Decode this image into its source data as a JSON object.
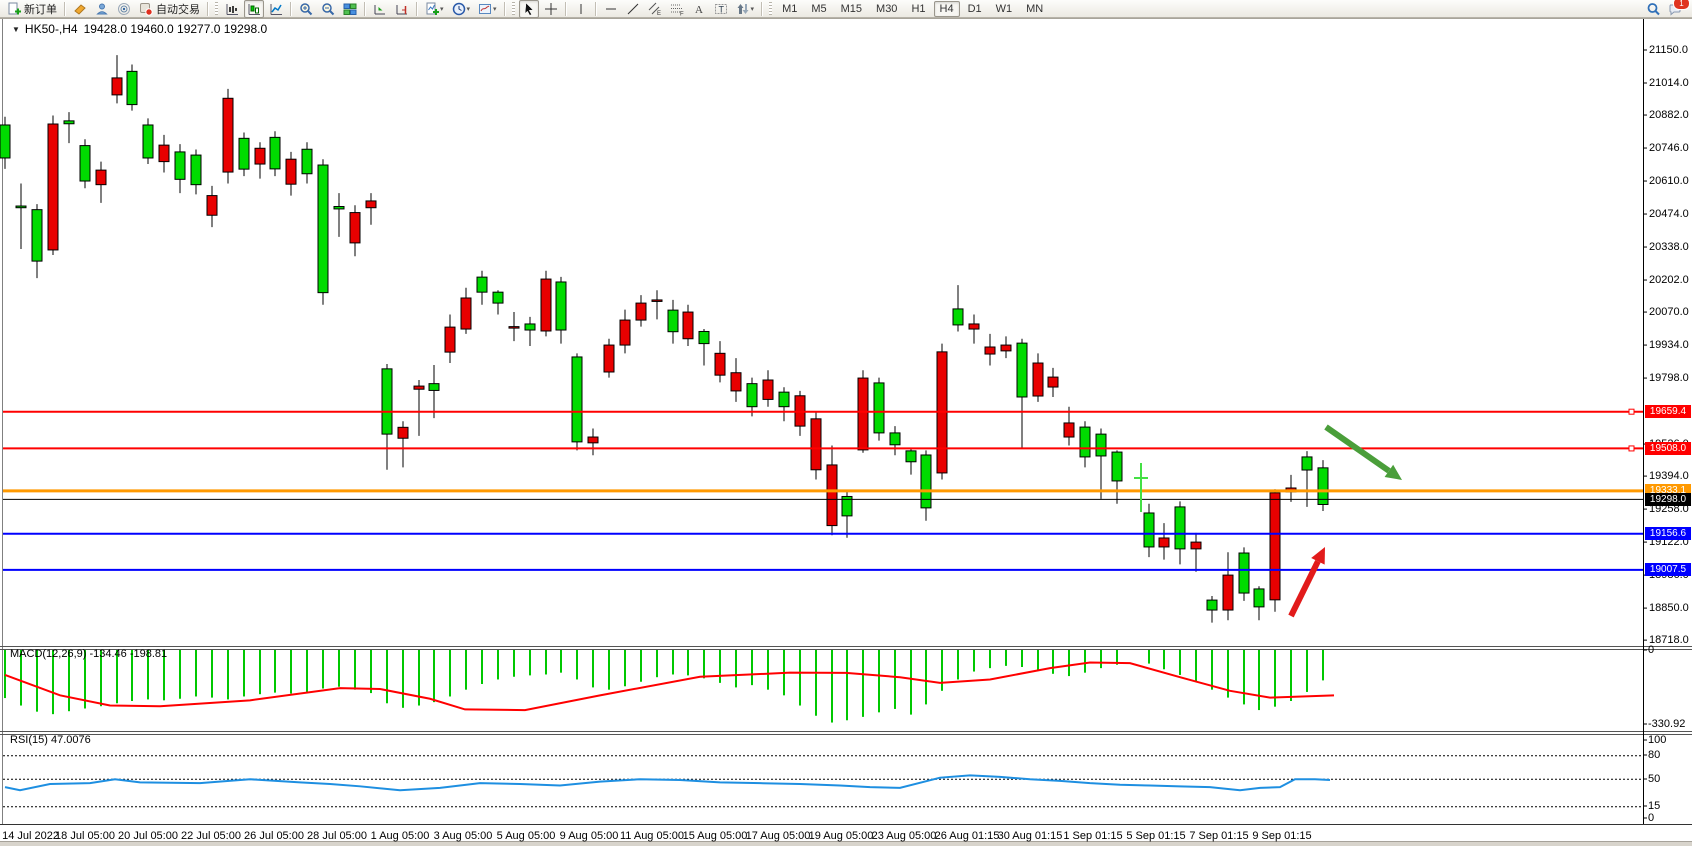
{
  "toolbar": {
    "new_order_label": "新订单",
    "autotrade_label": "自动交易",
    "timeframes": [
      "M1",
      "M5",
      "M15",
      "M30",
      "H1",
      "H4",
      "D1",
      "W1",
      "MN"
    ],
    "active_timeframe": "H4",
    "notification_badge": "1",
    "items": [
      {
        "name": "new-order-button",
        "icon": "new-order",
        "label": "新订单"
      },
      {
        "sep": true
      },
      {
        "name": "styler-button",
        "icon": "styler"
      },
      {
        "name": "profile-button",
        "icon": "profile"
      },
      {
        "name": "radar-button",
        "icon": "radar"
      },
      {
        "name": "autotrade-button",
        "icon": "autotrade",
        "label": "自动交易"
      },
      {
        "sep": true
      },
      {
        "handle": true
      },
      {
        "name": "bars-chart-button",
        "icon": "bars"
      },
      {
        "name": "candles-chart-button",
        "icon": "candles",
        "active": true
      },
      {
        "name": "line-chart-button",
        "icon": "linechart"
      },
      {
        "sep": true
      },
      {
        "name": "zoom-in-button",
        "icon": "zoom-in"
      },
      {
        "name": "zoom-out-button",
        "icon": "zoom-out"
      },
      {
        "name": "tile-windows-button",
        "icon": "tile"
      },
      {
        "sep": true
      },
      {
        "name": "autoscroll-button",
        "icon": "autoscroll"
      },
      {
        "name": "chart-shift-button",
        "icon": "chartshift"
      },
      {
        "sep": true
      },
      {
        "name": "indicators-button",
        "icon": "indicators",
        "dropdown": true
      },
      {
        "name": "periods-button",
        "icon": "clock",
        "dropdown": true
      },
      {
        "name": "templates-button",
        "icon": "template",
        "dropdown": true
      },
      {
        "sep": true
      },
      {
        "handle": true
      },
      {
        "name": "cursor-button",
        "icon": "cursor",
        "active": true
      },
      {
        "name": "crosshair-button",
        "icon": "crosshair"
      },
      {
        "sep": true
      },
      {
        "name": "vline-button",
        "icon": "vline"
      },
      {
        "sep": true
      },
      {
        "name": "hline-button",
        "icon": "hline"
      },
      {
        "name": "trendline-button",
        "icon": "trendline"
      },
      {
        "name": "channel-button",
        "icon": "channel"
      },
      {
        "name": "fibo-button",
        "icon": "fibo"
      },
      {
        "name": "text-button",
        "icon": "text"
      },
      {
        "name": "label-button",
        "icon": "label"
      },
      {
        "name": "shapes-button",
        "icon": "shapes",
        "dropdown": true
      },
      {
        "sep": true
      },
      {
        "handle": true
      }
    ]
  },
  "chart_window": {
    "title_symbol": "HK50-,H4",
    "title_ohlc": "19428.0 19460.0 19277.0 19298.0"
  },
  "indicators": {
    "macd_label": "MACD(12,26,9) -134.46 -198.81",
    "rsi_label": "RSI(15) 47.0076"
  },
  "colors": {
    "bull": "#00DB00",
    "bear": "#E80000",
    "macd_hist": "#00C800",
    "macd_signal": "#FF0000",
    "rsi_line": "#1E8FE1",
    "level_red": "#FF0000",
    "level_orange": "#FF9900",
    "level_blue": "#0000FF",
    "current_price": "#000000"
  },
  "axes": {
    "price_ticks": [
      "21150.0",
      "21014.0",
      "20882.0",
      "20746.0",
      "20610.0",
      "20474.0",
      "20338.0",
      "20202.0",
      "20070.0",
      "19934.0",
      "19798.0",
      "19526.0",
      "19394.0",
      "19258.0",
      "19122.0",
      "18986.0",
      "18850.0",
      "18718.0"
    ],
    "macd_axis": [
      [
        "0",
        650
      ],
      [
        "-330.92",
        724
      ]
    ],
    "rsi_axis": [
      [
        "100",
        740
      ],
      [
        "80",
        755
      ],
      [
        "50",
        779
      ],
      [
        "15",
        806
      ],
      [
        "0",
        818
      ]
    ],
    "dates": [
      "14 Jul 2022",
      "18 Jul 05:00",
      "20 Jul 05:00",
      "22 Jul 05:00",
      "26 Jul 05:00",
      "28 Jul 05:00",
      "1 Aug 05:00",
      "3 Aug 05:00",
      "5 Aug 05:00",
      "9 Aug 05:00",
      "11 Aug 05:00",
      "15 Aug 05:00",
      "17 Aug 05:00",
      "19 Aug 05:00",
      "23 Aug 05:00",
      "26 Aug 01:15",
      "30 Aug 01:15",
      "1 Sep 01:15",
      "5 Sep 01:15",
      "7 Sep 01:15",
      "9 Sep 01:15"
    ]
  },
  "levels": [
    {
      "label": "19659.4",
      "price": 19659.4,
      "color": "#FF0000",
      "w": 2,
      "handle": true
    },
    {
      "label": "19508.0",
      "price": 19508.0,
      "color": "#FF0000",
      "w": 2,
      "handle": true
    },
    {
      "label": "19333.1",
      "price": 19333.1,
      "color": "#FF9900",
      "w": 3
    },
    {
      "label": "19298.0",
      "price": 19298.0,
      "color": "#000000",
      "w": 1
    },
    {
      "label": "19156.6",
      "price": 19156.6,
      "color": "#0000FF",
      "w": 2
    },
    {
      "label": "19007.5",
      "price": 19007.5,
      "color": "#0000FF",
      "w": 2
    }
  ],
  "annotations": {
    "green_arrow": {
      "from": [
        1326,
        427
      ],
      "to": [
        1402,
        480
      ],
      "color": "#4A9E3A"
    },
    "red_arrow": {
      "from": [
        1291,
        616
      ],
      "to": [
        1325,
        547
      ],
      "color": "#E21B1B"
    },
    "lime_cross": {
      "x": 1141,
      "y": 478,
      "color": "#44E044"
    }
  },
  "chart_data": [
    {
      "type": "candlestick",
      "title": "HK50-,H4",
      "symbol": "HK50-",
      "timeframe": "H4",
      "current_ohlc": {
        "open": 19428.0,
        "high": 19460.0,
        "low": 19277.0,
        "close": 19298.0
      },
      "ylim": [
        18718.0,
        21150.0
      ],
      "levels": [
        19659.4,
        19508.0,
        19333.1,
        19298.0,
        19156.6,
        19007.5
      ],
      "candles": [
        [
          5,
          20705,
          20875,
          20660,
          20841
        ],
        [
          21,
          20500,
          20600,
          20330,
          20507
        ],
        [
          37,
          20280,
          20515,
          20210,
          20492
        ],
        [
          53,
          20845,
          20880,
          20305,
          20326
        ],
        [
          69,
          20846,
          20894,
          20766,
          20858
        ],
        [
          85,
          20610,
          20782,
          20580,
          20756
        ],
        [
          101,
          20655,
          20690,
          20520,
          20595
        ],
        [
          117,
          21035,
          21129,
          20930,
          20965
        ],
        [
          132,
          20925,
          21090,
          20900,
          21062
        ],
        [
          148,
          20705,
          20868,
          20680,
          20841
        ],
        [
          164,
          20758,
          20800,
          20645,
          20690
        ],
        [
          180,
          20617,
          20762,
          20560,
          20730
        ],
        [
          196,
          20595,
          20740,
          20555,
          20717
        ],
        [
          212,
          20550,
          20590,
          20420,
          20469
        ],
        [
          228,
          20951,
          20990,
          20600,
          20647
        ],
        [
          244,
          20659,
          20810,
          20630,
          20786
        ],
        [
          260,
          20745,
          20770,
          20620,
          20680
        ],
        [
          275,
          20660,
          20815,
          20630,
          20790
        ],
        [
          291,
          20700,
          20730,
          20550,
          20597
        ],
        [
          307,
          20640,
          20770,
          20600,
          20741
        ],
        [
          323,
          20150,
          20700,
          20100,
          20676
        ],
        [
          339,
          20495,
          20560,
          20380,
          20505
        ],
        [
          355,
          20480,
          20510,
          20300,
          20355
        ],
        [
          371,
          20528,
          20560,
          20430,
          20500
        ],
        [
          387,
          19567,
          19856,
          19420,
          19836
        ],
        [
          403,
          19595,
          19620,
          19430,
          19550
        ],
        [
          419,
          19765,
          19790,
          19560,
          19752
        ],
        [
          434,
          19747,
          19852,
          19633,
          19775
        ],
        [
          450,
          20008,
          20060,
          19860,
          19905
        ],
        [
          466,
          20128,
          20170,
          19980,
          20000
        ],
        [
          482,
          20152,
          20240,
          20100,
          20214
        ],
        [
          498,
          20107,
          20160,
          20060,
          20152
        ],
        [
          514,
          20010,
          20070,
          19950,
          20008
        ],
        [
          530,
          19996,
          20050,
          19930,
          20021
        ],
        [
          546,
          20206,
          20240,
          19970,
          19992
        ],
        [
          561,
          19996,
          20215,
          19940,
          20194
        ],
        [
          577,
          19535,
          19900,
          19500,
          19885
        ],
        [
          593,
          19555,
          19590,
          19480,
          19531
        ],
        [
          609,
          19934,
          19960,
          19800,
          19823
        ],
        [
          625,
          20037,
          20080,
          19900,
          19934
        ],
        [
          641,
          20107,
          20140,
          20010,
          20037
        ],
        [
          657,
          20120,
          20160,
          20040,
          20116
        ],
        [
          673,
          19989,
          20120,
          19940,
          20078
        ],
        [
          688,
          20070,
          20100,
          19930,
          19960
        ],
        [
          704,
          19940,
          20000,
          19850,
          19990
        ],
        [
          720,
          19900,
          19950,
          19780,
          19810
        ],
        [
          736,
          19820,
          19880,
          19700,
          19745
        ],
        [
          752,
          19680,
          19800,
          19640,
          19775
        ],
        [
          768,
          19790,
          19830,
          19680,
          19710
        ],
        [
          784,
          19680,
          19760,
          19620,
          19740
        ],
        [
          800,
          19725,
          19745,
          19560,
          19600
        ],
        [
          816,
          19630,
          19660,
          19380,
          19420
        ],
        [
          832,
          19440,
          19520,
          19150,
          19190
        ],
        [
          847,
          19230,
          19330,
          19140,
          19310
        ],
        [
          863,
          19798,
          19830,
          19490,
          19502
        ],
        [
          879,
          19572,
          19800,
          19540,
          19778
        ],
        [
          895,
          19523,
          19600,
          19480,
          19572
        ],
        [
          911,
          19453,
          19510,
          19400,
          19498
        ],
        [
          926,
          19263,
          19500,
          19210,
          19481
        ],
        [
          942,
          19906,
          19940,
          19380,
          19407
        ],
        [
          958,
          20017,
          20181,
          19990,
          20083
        ],
        [
          974,
          20021,
          20060,
          19940,
          20000
        ],
        [
          990,
          19926,
          19980,
          19850,
          19897
        ],
        [
          1006,
          19934,
          19970,
          19880,
          19910
        ],
        [
          1022,
          19720,
          19960,
          19510,
          19942
        ],
        [
          1038,
          19860,
          19900,
          19700,
          19724
        ],
        [
          1053,
          19802,
          19840,
          19720,
          19761
        ],
        [
          1069,
          19613,
          19680,
          19520,
          19555
        ],
        [
          1085,
          19473,
          19620,
          19430,
          19596
        ],
        [
          1101,
          19477,
          19590,
          19300,
          19567
        ],
        [
          1117,
          19374,
          19500,
          19280,
          19493
        ],
        [
          1149,
          19102,
          19280,
          19060,
          19242
        ],
        [
          1164,
          19139,
          19200,
          19050,
          19102
        ],
        [
          1180,
          19094,
          19290,
          19030,
          19267
        ],
        [
          1196,
          19122,
          19160,
          19000,
          19094
        ],
        [
          1212,
          18842,
          18900,
          18790,
          18883
        ],
        [
          1228,
          18986,
          19080,
          18800,
          18842
        ],
        [
          1244,
          18912,
          19100,
          18880,
          19077
        ],
        [
          1259,
          18855,
          18940,
          18800,
          18929
        ],
        [
          1275,
          19325,
          19340,
          18835,
          18884
        ],
        [
          1291,
          19345,
          19399,
          19288,
          19329
        ],
        [
          1307,
          19419,
          19497,
          19267,
          19473
        ],
        [
          1323,
          19277,
          19460,
          19250,
          19428
        ]
      ]
    },
    {
      "type": "bar",
      "name": "MACD",
      "params": "12,26,9",
      "value": -134.46,
      "signal": -198.81,
      "ylim": [
        -330.92,
        0
      ],
      "hist": [
        -212,
        -245,
        -272,
        -283,
        -270,
        -258,
        -248,
        -235,
        -225,
        -218,
        -222,
        -215,
        -205,
        -210,
        -218,
        -205,
        -195,
        -188,
        -192,
        -185,
        -170,
        -162,
        -175,
        -190,
        -235,
        -255,
        -245,
        -230,
        -205,
        -175,
        -150,
        -130,
        -118,
        -112,
        -108,
        -100,
        -130,
        -165,
        -175,
        -160,
        -140,
        -120,
        -108,
        -112,
        -125,
        -145,
        -165,
        -155,
        -175,
        -200,
        -245,
        -290,
        -320,
        -310,
        -295,
        -275,
        -260,
        -285,
        -240,
        -180,
        -130,
        -95,
        -80,
        -70,
        -75,
        -90,
        -105,
        -115,
        -100,
        -80,
        -65,
        -60,
        -85,
        -110,
        -140,
        -175,
        -210,
        -240,
        -265,
        -250,
        -225,
        -185,
        -134
      ],
      "signal_points": [
        [
          5,
          -110
        ],
        [
          60,
          -200
        ],
        [
          110,
          -245
        ],
        [
          160,
          -248
        ],
        [
          250,
          -222
        ],
        [
          340,
          -168
        ],
        [
          380,
          -172
        ],
        [
          430,
          -215
        ],
        [
          465,
          -262
        ],
        [
          525,
          -265
        ],
        [
          600,
          -200
        ],
        [
          700,
          -118
        ],
        [
          790,
          -100
        ],
        [
          846,
          -101
        ],
        [
          900,
          -120
        ],
        [
          940,
          -145
        ],
        [
          990,
          -130
        ],
        [
          1050,
          -80
        ],
        [
          1090,
          -55
        ],
        [
          1130,
          -58
        ],
        [
          1180,
          -120
        ],
        [
          1230,
          -180
        ],
        [
          1270,
          -210
        ],
        [
          1334,
          -200
        ]
      ]
    },
    {
      "type": "line",
      "name": "RSI",
      "period": 15,
      "value": 47.0076,
      "ylim": [
        0,
        100
      ],
      "levels": [
        80,
        50,
        15
      ],
      "points": [
        [
          5,
          40
        ],
        [
          20,
          36
        ],
        [
          50,
          44
        ],
        [
          90,
          45
        ],
        [
          115,
          50
        ],
        [
          140,
          46
        ],
        [
          200,
          45
        ],
        [
          250,
          50
        ],
        [
          300,
          46
        ],
        [
          330,
          44
        ],
        [
          360,
          41
        ],
        [
          400,
          36
        ],
        [
          440,
          39
        ],
        [
          480,
          45
        ],
        [
          520,
          44
        ],
        [
          560,
          42
        ],
        [
          600,
          47
        ],
        [
          640,
          50
        ],
        [
          680,
          49
        ],
        [
          720,
          46
        ],
        [
          760,
          45
        ],
        [
          800,
          44
        ],
        [
          840,
          42
        ],
        [
          870,
          40
        ],
        [
          900,
          39
        ],
        [
          940,
          52
        ],
        [
          970,
          55
        ],
        [
          1000,
          53
        ],
        [
          1030,
          50
        ],
        [
          1060,
          48
        ],
        [
          1090,
          45
        ],
        [
          1120,
          43
        ],
        [
          1150,
          42
        ],
        [
          1180,
          41
        ],
        [
          1210,
          40
        ],
        [
          1240,
          36
        ],
        [
          1260,
          39
        ],
        [
          1280,
          40
        ],
        [
          1295,
          50
        ],
        [
          1315,
          50
        ],
        [
          1330,
          49
        ]
      ]
    }
  ]
}
